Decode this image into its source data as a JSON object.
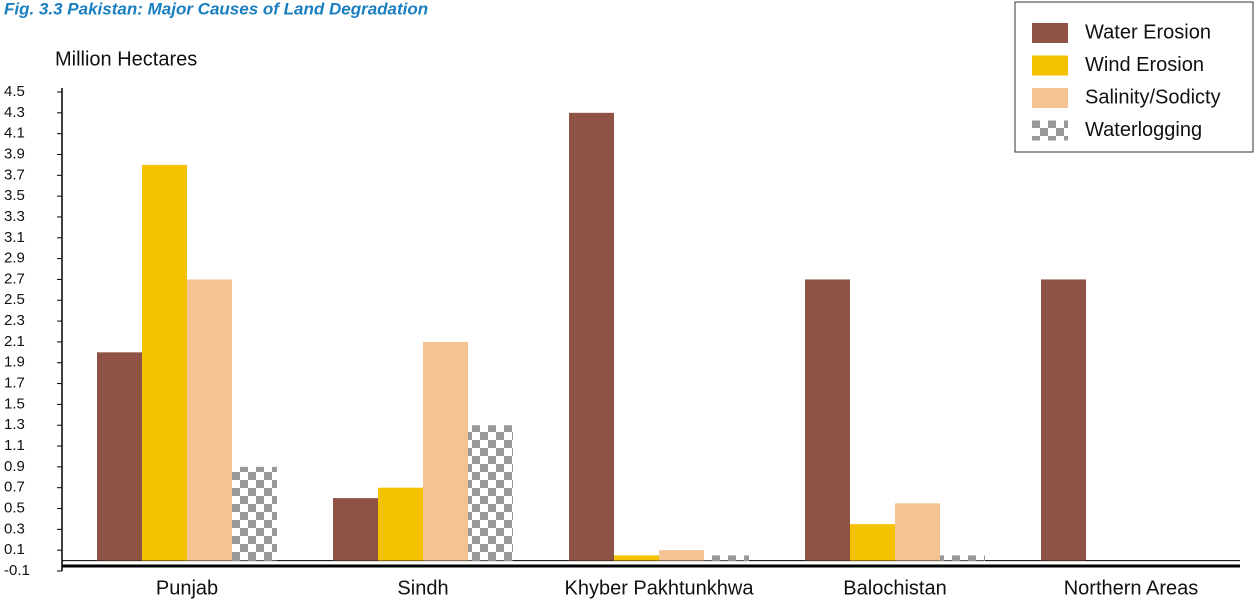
{
  "chart_data": {
    "type": "bar",
    "title": "Fig. 3.3 Pakistan: Major Causes of Land Degradation",
    "y_label": "Million Hectares",
    "categories": [
      "Punjab",
      "Sindh",
      "Khyber Pakhtunkhwa",
      "Balochistan",
      "Northern Areas"
    ],
    "series": [
      {
        "name": "Water Erosion",
        "color": "#8f5346",
        "values": [
          2.0,
          0.6,
          4.3,
          2.7,
          2.7
        ]
      },
      {
        "name": "Wind Erosion",
        "color": "#f5c200",
        "values": [
          3.8,
          0.7,
          0.05,
          0.35,
          0
        ]
      },
      {
        "name": "Salinity/Sodicty",
        "color": "#f5c392",
        "values": [
          2.7,
          2.1,
          0.1,
          0.55,
          0
        ]
      },
      {
        "name": "Waterlogging",
        "color": "#999999",
        "pattern": "checker",
        "values": [
          0.9,
          1.3,
          0.05,
          0.05,
          0
        ]
      }
    ],
    "ylim": [
      -0.1,
      4.5
    ],
    "yticks": [
      -0.1,
      0.1,
      0.3,
      0.5,
      0.7,
      0.9,
      1.1,
      1.3,
      1.5,
      1.7,
      1.9,
      2.1,
      2.3,
      2.5,
      2.7,
      2.9,
      3.1,
      3.3,
      3.5,
      3.7,
      3.9,
      4.1,
      4.3,
      4.5
    ],
    "legend": "top-right"
  }
}
